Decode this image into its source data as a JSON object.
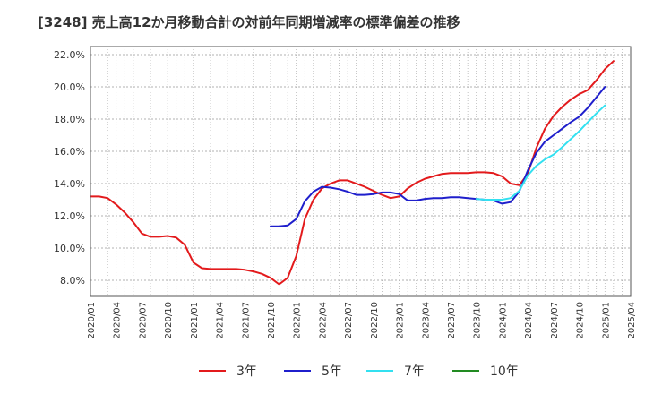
{
  "chart_data": {
    "type": "line",
    "title": "[3248]  売上高12か月移動合計の対前年同期増減率の標準偏差の推移",
    "xlabel": "",
    "ylabel": "",
    "ylim": [
      7.0,
      22.5
    ],
    "y_ticks": [
      "8.0%",
      "10.0%",
      "12.0%",
      "14.0%",
      "16.0%",
      "18.0%",
      "20.0%",
      "22.0%"
    ],
    "y_tick_values": [
      8,
      10,
      12,
      14,
      16,
      18,
      20,
      22
    ],
    "x_ticks": [
      "2020/01",
      "2020/04",
      "2020/07",
      "2020/10",
      "2021/01",
      "2021/04",
      "2021/07",
      "2021/10",
      "2022/01",
      "2022/04",
      "2022/07",
      "2022/10",
      "2023/01",
      "2023/04",
      "2023/07",
      "2023/10",
      "2024/01",
      "2024/04",
      "2024/07",
      "2024/10",
      "2025/01",
      "2025/04"
    ],
    "x_range_months": [
      0,
      63
    ],
    "grid": true,
    "series": [
      {
        "name": "3年",
        "color": "#e31a1c",
        "points": [
          [
            0,
            13.2
          ],
          [
            1,
            13.2
          ],
          [
            2,
            13.1
          ],
          [
            3,
            12.7
          ],
          [
            4,
            12.2
          ],
          [
            5,
            11.6
          ],
          [
            6,
            10.9
          ],
          [
            7,
            10.7
          ],
          [
            8,
            10.7
          ],
          [
            9,
            10.75
          ],
          [
            10,
            10.65
          ],
          [
            11,
            10.2
          ],
          [
            12,
            9.1
          ],
          [
            13,
            8.75
          ],
          [
            14,
            8.7
          ],
          [
            15,
            8.7
          ],
          [
            16,
            8.7
          ],
          [
            17,
            8.7
          ],
          [
            18,
            8.65
          ],
          [
            19,
            8.55
          ],
          [
            20,
            8.4
          ],
          [
            21,
            8.15
          ],
          [
            22,
            7.75
          ],
          [
            23,
            8.15
          ],
          [
            24,
            9.5
          ],
          [
            25,
            11.8
          ],
          [
            26,
            13.0
          ],
          [
            27,
            13.7
          ],
          [
            28,
            14.0
          ],
          [
            29,
            14.2
          ],
          [
            30,
            14.2
          ],
          [
            31,
            14.0
          ],
          [
            32,
            13.8
          ],
          [
            33,
            13.55
          ],
          [
            34,
            13.3
          ],
          [
            35,
            13.1
          ],
          [
            36,
            13.2
          ],
          [
            37,
            13.7
          ],
          [
            38,
            14.05
          ],
          [
            39,
            14.3
          ],
          [
            40,
            14.45
          ],
          [
            41,
            14.6
          ],
          [
            42,
            14.65
          ],
          [
            43,
            14.65
          ],
          [
            44,
            14.65
          ],
          [
            45,
            14.7
          ],
          [
            46,
            14.7
          ],
          [
            47,
            14.65
          ],
          [
            48,
            14.45
          ],
          [
            49,
            14.0
          ],
          [
            50,
            13.9
          ],
          [
            51,
            14.6
          ],
          [
            52,
            16.2
          ],
          [
            53,
            17.4
          ],
          [
            54,
            18.2
          ],
          [
            55,
            18.75
          ],
          [
            56,
            19.2
          ],
          [
            57,
            19.55
          ],
          [
            58,
            19.8
          ],
          [
            59,
            20.4
          ],
          [
            60,
            21.1
          ],
          [
            61,
            21.6
          ]
        ]
      },
      {
        "name": "5年",
        "color": "#1f1fcc",
        "points": [
          [
            21,
            11.35
          ],
          [
            22,
            11.35
          ],
          [
            23,
            11.4
          ],
          [
            24,
            11.8
          ],
          [
            25,
            12.9
          ],
          [
            26,
            13.5
          ],
          [
            27,
            13.8
          ],
          [
            28,
            13.75
          ],
          [
            29,
            13.65
          ],
          [
            30,
            13.5
          ],
          [
            31,
            13.3
          ],
          [
            32,
            13.3
          ],
          [
            33,
            13.35
          ],
          [
            34,
            13.45
          ],
          [
            35,
            13.45
          ],
          [
            36,
            13.35
          ],
          [
            37,
            12.95
          ],
          [
            38,
            12.95
          ],
          [
            39,
            13.05
          ],
          [
            40,
            13.1
          ],
          [
            41,
            13.1
          ],
          [
            42,
            13.15
          ],
          [
            43,
            13.15
          ],
          [
            44,
            13.1
          ],
          [
            45,
            13.05
          ],
          [
            46,
            13.0
          ],
          [
            47,
            12.95
          ],
          [
            48,
            12.75
          ],
          [
            49,
            12.85
          ],
          [
            50,
            13.5
          ],
          [
            51,
            14.8
          ],
          [
            52,
            15.9
          ],
          [
            53,
            16.6
          ],
          [
            54,
            17.0
          ],
          [
            55,
            17.4
          ],
          [
            56,
            17.8
          ],
          [
            57,
            18.15
          ],
          [
            58,
            18.7
          ],
          [
            59,
            19.35
          ],
          [
            60,
            20.0
          ]
        ]
      },
      {
        "name": "7年",
        "color": "#33e0f0",
        "points": [
          [
            45,
            13.05
          ],
          [
            46,
            13.0
          ],
          [
            47,
            13.0
          ],
          [
            48,
            13.0
          ],
          [
            49,
            13.1
          ],
          [
            50,
            13.55
          ],
          [
            51,
            14.5
          ],
          [
            52,
            15.1
          ],
          [
            53,
            15.5
          ],
          [
            54,
            15.8
          ],
          [
            55,
            16.25
          ],
          [
            56,
            16.75
          ],
          [
            57,
            17.25
          ],
          [
            58,
            17.8
          ],
          [
            59,
            18.35
          ],
          [
            60,
            18.85
          ]
        ]
      },
      {
        "name": "10年",
        "color": "#228b22",
        "points": []
      }
    ],
    "legend_position": "bottom"
  }
}
